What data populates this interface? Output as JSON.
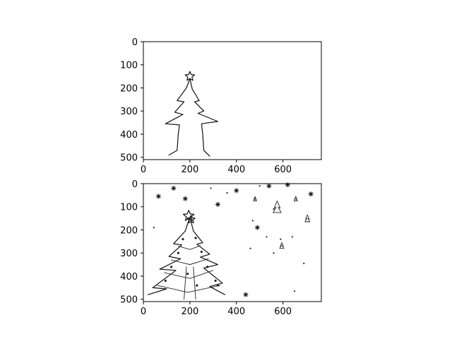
{
  "chart_data": [
    {
      "type": "image",
      "content": "line sketch of a christmas tree with a star on top",
      "xlim": [
        0,
        765
      ],
      "ylim": [
        510,
        0
      ],
      "xticks": [
        0,
        200,
        400,
        600
      ],
      "yticks": [
        0,
        100,
        200,
        300,
        400,
        500
      ]
    },
    {
      "type": "image",
      "content": "detailed sketch of a christmas tree with star, ornaments and surrounding snowflakes and small trees",
      "xlim": [
        0,
        765
      ],
      "ylim": [
        510,
        0
      ],
      "xticks": [
        0,
        200,
        400,
        600
      ],
      "yticks": [
        0,
        100,
        200,
        300,
        400,
        500
      ]
    }
  ]
}
